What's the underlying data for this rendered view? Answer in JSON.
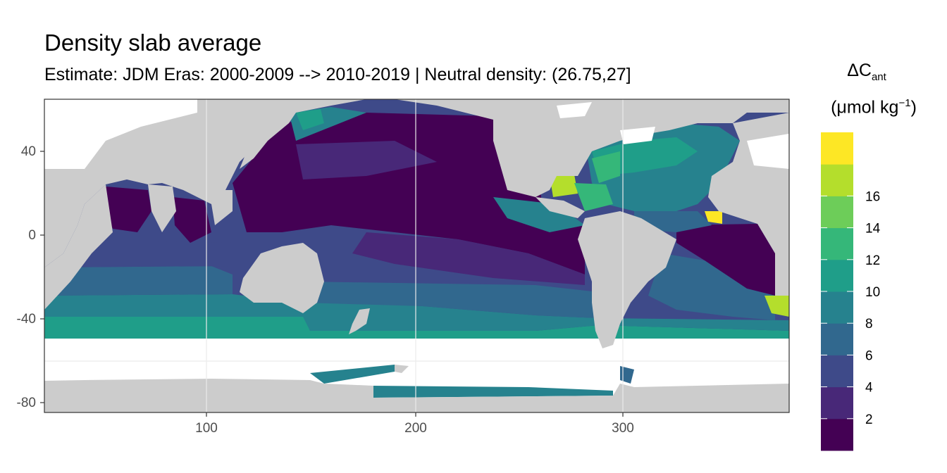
{
  "title": "Density slab average",
  "subtitle": "Estimate: JDM Eras: 2000-2009 --> 2010-2019 | Neutral density: (26.75,27]",
  "legend": {
    "title_symbol": "ΔC",
    "title_sub": "ant",
    "unit_prefix": "(μmol kg",
    "unit_sup": "−1",
    "unit_suffix": ")",
    "breaks": [
      2,
      4,
      6,
      8,
      10,
      12,
      14,
      16
    ],
    "colors": [
      "#440154",
      "#482878",
      "#3E4A89",
      "#31688E",
      "#26828E",
      "#1F9E89",
      "#35B779",
      "#6DCD59",
      "#B4DE2C",
      "#FDE725"
    ]
  },
  "axes": {
    "x_ticks": [
      100,
      200,
      300
    ],
    "y_ticks": [
      40,
      0,
      -40,
      -80
    ],
    "x_range": [
      20,
      380
    ],
    "y_range": [
      -84,
      65
    ]
  },
  "colors": {
    "land": "#cccccc",
    "no_data": "#ffffff",
    "grid": "#ebebeb",
    "panel_border": "#333333"
  }
}
